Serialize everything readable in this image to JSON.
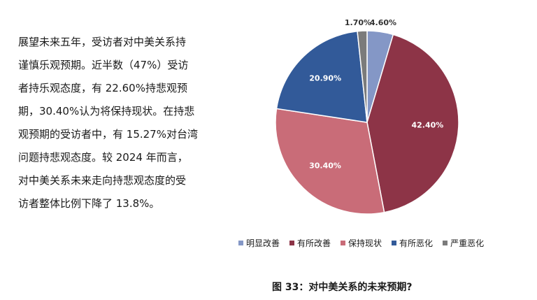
{
  "paragraph": {
    "lines": [
      "展望未来五年，受访者对中美关系持",
      "谨慎乐观预期。近半数（47%）受访",
      "者持乐观态度，有 22.60%持悲观预",
      "期，30.40%认为将保持现状。在持悲",
      "观预期的受访者中，有 15.27%对台湾",
      "问题持悲观态度。较 2024 年而言，",
      "对中美关系未来走向持悲观态度的受",
      "访者整体比例下降了 13.8%。"
    ]
  },
  "chart_data": {
    "type": "pie",
    "title": "图 33：对中美关系的未来预期?",
    "categories": [
      "明显改善",
      "有所改善",
      "保持现状",
      "有所恶化",
      "严重恶化"
    ],
    "values": [
      4.6,
      42.4,
      30.4,
      20.9,
      1.7
    ],
    "labels": [
      "4.60%",
      "42.40%",
      "30.40%",
      "20.90%",
      "1.70%"
    ],
    "colors": [
      "#8497c6",
      "#8d3447",
      "#c96c78",
      "#325a99",
      "#7b7b7b"
    ],
    "legend_position": "bottom"
  }
}
